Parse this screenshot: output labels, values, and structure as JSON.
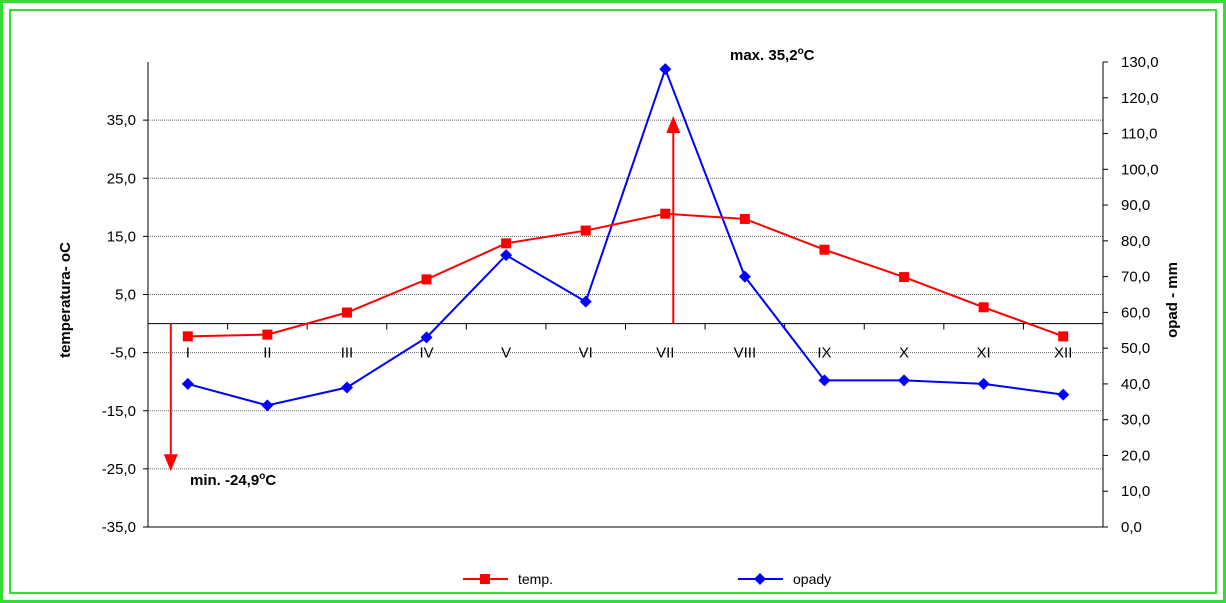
{
  "colors": {
    "temp": "#ff0000",
    "opady": "#0000ff",
    "frame": "#33dd33",
    "grid": "#000000"
  },
  "chart_data": {
    "type": "line",
    "categories": [
      "I",
      "II",
      "III",
      "IV",
      "V",
      "VI",
      "VII",
      "VIII",
      "IX",
      "X",
      "XI",
      "XII"
    ],
    "series": [
      {
        "name": "temp.",
        "axis": "left",
        "marker": "square",
        "values": [
          -2.2,
          -1.9,
          1.9,
          7.6,
          13.8,
          16.0,
          18.9,
          18.0,
          12.7,
          8.0,
          2.8,
          -2.2
        ]
      },
      {
        "name": "opady",
        "axis": "right",
        "marker": "diamond",
        "values": [
          40,
          34,
          39,
          53,
          76,
          63,
          128,
          70,
          41,
          41,
          40,
          37
        ]
      }
    ],
    "ylabel_left": "temperatura- oC",
    "ylabel_right": "opad - mm",
    "ylim_left": [
      -35,
      45
    ],
    "ylim_right": [
      0,
      130
    ],
    "yticks_left": [
      "35,0",
      "25,0",
      "15,0",
      "5,0",
      "-5,0",
      "-15,0",
      "-25,0",
      "-35,0"
    ],
    "yticks_right": [
      "130,0",
      "120,0",
      "110,0",
      "100,0",
      "90,0",
      "80,0",
      "70,0",
      "60,0",
      "50,0",
      "40,0",
      "30,0",
      "20,0",
      "10,0",
      "0,0"
    ],
    "grid": true,
    "legend_position": "bottom",
    "annotations": {
      "max": {
        "label": "max. 35,2",
        "sup": "o",
        "unit": "C",
        "value": 35.2,
        "month_index": 6
      },
      "min": {
        "label": "min. -24,9",
        "sup": "o",
        "unit": "C",
        "value": -24.9,
        "month_index": 0
      }
    }
  }
}
